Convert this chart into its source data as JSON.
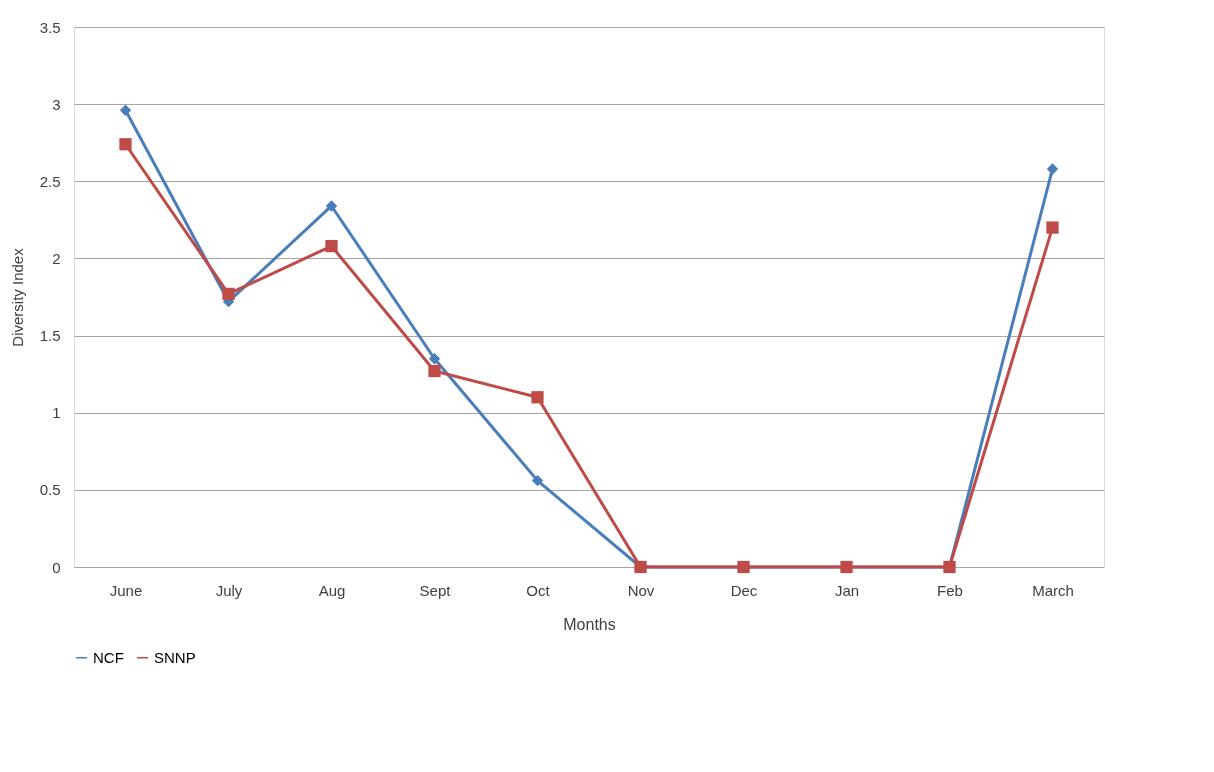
{
  "chart_data": {
    "type": "line",
    "xlabel": "Months",
    "ylabel": "Diversity Index",
    "categories": [
      "June",
      "July",
      "Aug",
      "Sept",
      "Oct",
      "Nov",
      "Dec",
      "Jan",
      "Feb",
      "March"
    ],
    "series": [
      {
        "name": "NCF",
        "color": "#4a7ebb",
        "marker": "diamond",
        "values": [
          2.96,
          1.72,
          2.34,
          1.35,
          0.56,
          0,
          0,
          0,
          0,
          2.58
        ]
      },
      {
        "name": "SNNP",
        "color": "#be4b48",
        "marker": "square",
        "values": [
          2.74,
          1.77,
          2.08,
          1.27,
          1.1,
          0,
          0,
          0,
          0,
          2.2
        ]
      }
    ],
    "ylim": [
      0,
      3.5
    ],
    "yticks": [
      0,
      0.5,
      1,
      1.5,
      2,
      2.5,
      3,
      3.5
    ],
    "grid": "y",
    "legend": "bottom",
    "line_style": "solid"
  }
}
